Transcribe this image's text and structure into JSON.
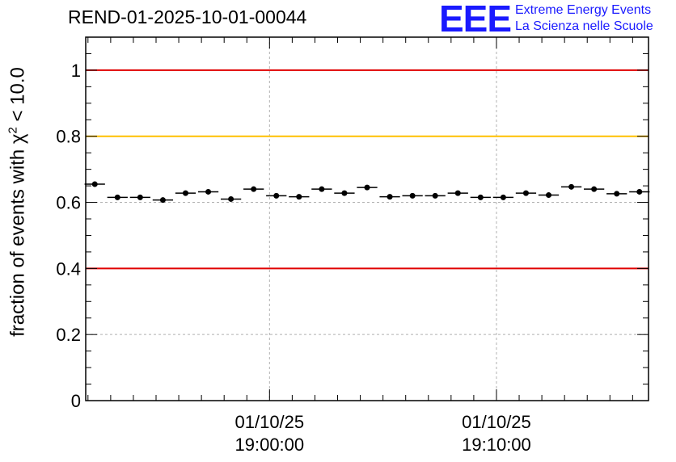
{
  "header": {
    "title": "REND-01-2025-10-01-00044",
    "logo_mark": "EEE",
    "logo_line1": "Extreme Energy Events",
    "logo_line2": "La Scienza nelle Scuole"
  },
  "colors": {
    "logo": "#1a1aff",
    "red_line": "#e00000",
    "yellow_line": "#ffc000",
    "grid": "#b0b0b0",
    "points": "#000000"
  },
  "chart_data": {
    "type": "scatter",
    "title": "REND-01-2025-10-01-00044",
    "ylabel_prefix": "fraction of events with ",
    "ylabel_symbol": "χ",
    "ylabel_sup": "2",
    "ylabel_suffix": " < 10.0",
    "ylim": [
      0,
      1.1
    ],
    "yticks": [
      0,
      0.2,
      0.4,
      0.6,
      0.8,
      1
    ],
    "ytick_labels": [
      "0",
      "0.2",
      "0.4",
      "0.6",
      "0.8",
      "1"
    ],
    "x_unit": "minutes",
    "xlim": [
      -8.1,
      16.7
    ],
    "xticks_major": [
      0,
      10
    ],
    "xtick_labels": [
      {
        "date": "01/10/25",
        "time": "19:00:00"
      },
      {
        "date": "01/10/25",
        "time": "19:10:00"
      }
    ],
    "grid": true,
    "reference_lines": [
      {
        "y": 1.0,
        "color": "red"
      },
      {
        "y": 0.8,
        "color": "yellow"
      },
      {
        "y": 0.4,
        "color": "red"
      }
    ],
    "bin_width": 0.9,
    "x": [
      -7.7,
      -6.7,
      -5.7,
      -4.7,
      -3.7,
      -2.7,
      -1.7,
      -0.7,
      0.3,
      1.3,
      2.3,
      3.3,
      4.3,
      5.3,
      6.3,
      7.3,
      8.3,
      9.3,
      10.3,
      11.3,
      12.3,
      13.3,
      14.3,
      15.3,
      16.3
    ],
    "y": [
      0.655,
      0.615,
      0.615,
      0.607,
      0.628,
      0.632,
      0.61,
      0.64,
      0.62,
      0.617,
      0.64,
      0.628,
      0.645,
      0.617,
      0.62,
      0.62,
      0.628,
      0.615,
      0.615,
      0.628,
      0.622,
      0.647,
      0.64,
      0.626,
      0.632
    ]
  }
}
